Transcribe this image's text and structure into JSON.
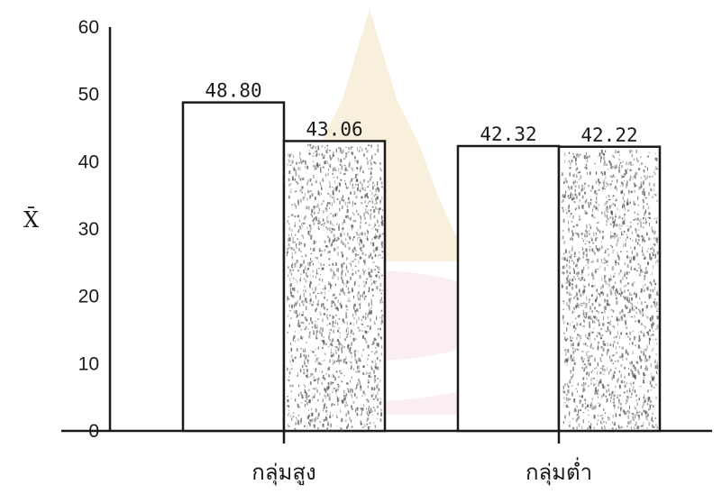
{
  "chart_data": {
    "type": "bar",
    "categories": [
      "กลุ่มสูง",
      "กลุ่มต่ำ"
    ],
    "series": [
      {
        "values": [
          48.8,
          42.32
        ]
      },
      {
        "values": [
          43.06,
          42.22
        ]
      }
    ],
    "value_labels": [
      [
        "48.80",
        "42.32"
      ],
      [
        "43.06",
        "42.22"
      ]
    ],
    "ylabel": "X̄",
    "xlabel": "",
    "title": "",
    "ylim": [
      0,
      60
    ],
    "yticks": [
      0,
      10,
      20,
      30,
      40,
      50,
      60
    ],
    "grid": false,
    "series_styles": [
      "plain",
      "stippled"
    ],
    "colors": {
      "ink": "#1a1a1a",
      "bar_fill": "#ffffff",
      "stipple": "#555555",
      "watermark_gold": "#d9b24a",
      "watermark_pink": "#e9a6c6"
    }
  }
}
